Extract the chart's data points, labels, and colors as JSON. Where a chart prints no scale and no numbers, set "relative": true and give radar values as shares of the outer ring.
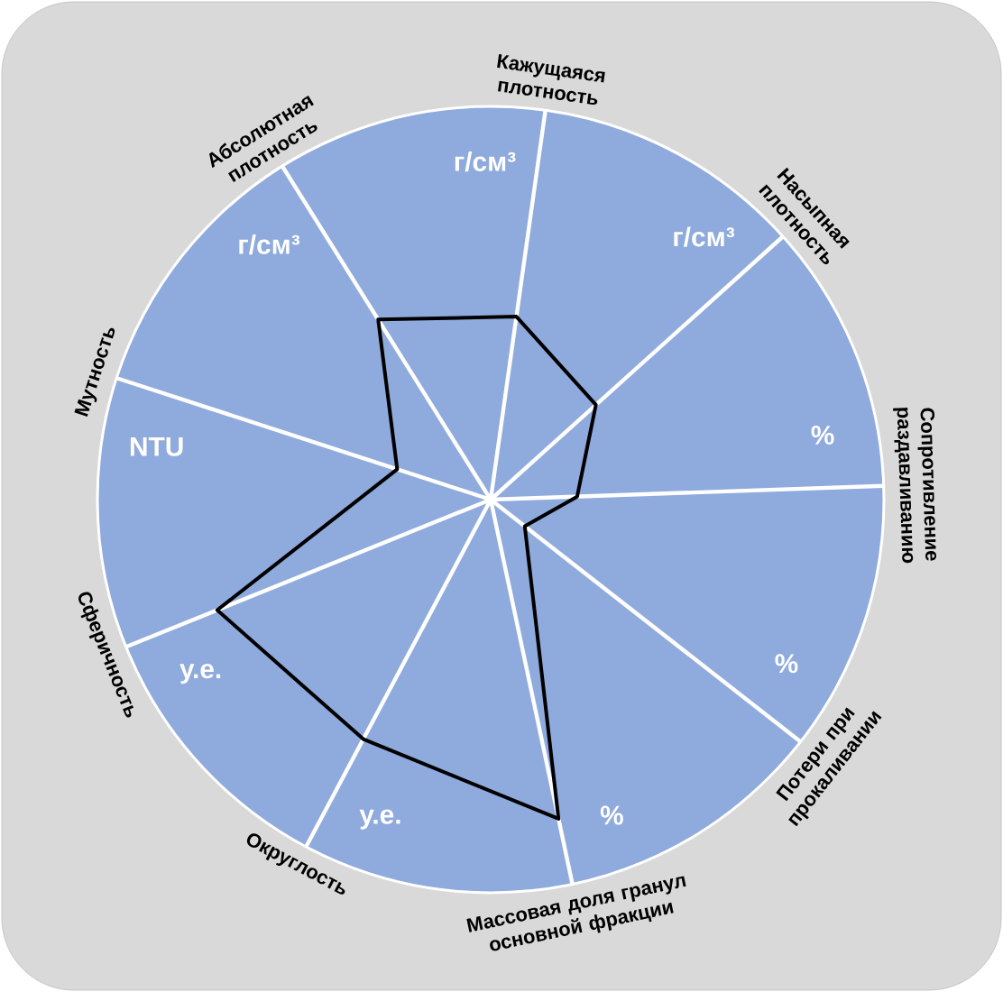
{
  "chart_data": {
    "type": "radar",
    "relative": true,
    "grid": true,
    "categories": [
      "Кажущаяся плотность",
      "Насыпная плотность",
      "Сопротивление раздавливанию",
      "Потери при прокаливании",
      "Массовая доля гранул основной фракции",
      "Округлость",
      "Сферичность",
      "Мутность",
      "Абсолютная плотность"
    ],
    "series": [
      {
        "color": "#000000",
        "values": [
          0.47,
          0.36,
          0.22,
          0.11,
          0.83,
          0.69,
          0.75,
          0.25,
          0.54
        ]
      }
    ],
    "annotations": [
      "г/см³",
      "г/см³",
      "%",
      "%",
      "%",
      "у.е.",
      "у.е.",
      "NTU",
      "г/см³"
    ]
  }
}
